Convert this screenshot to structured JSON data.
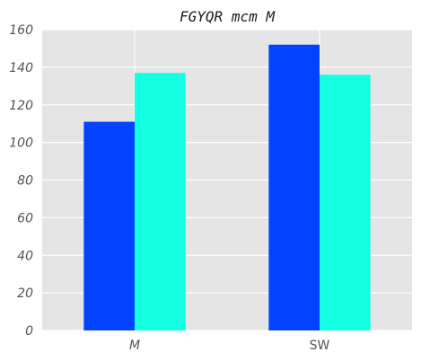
{
  "chart_data": {
    "type": "bar",
    "title": "FGYQR mcm M",
    "xlabel": "",
    "ylabel": "",
    "categories": [
      "M",
      "SW"
    ],
    "category_italic": [
      true,
      false
    ],
    "series": [
      {
        "values": [
          111,
          152
        ],
        "color": "#0343ff"
      },
      {
        "values": [
          137,
          136
        ],
        "color": "#13ffe2"
      }
    ],
    "ylim": [
      0,
      160
    ],
    "yticks": [
      0,
      20,
      40,
      60,
      80,
      100,
      120,
      140,
      160
    ],
    "grid": true,
    "background": "#e5e5e5"
  }
}
